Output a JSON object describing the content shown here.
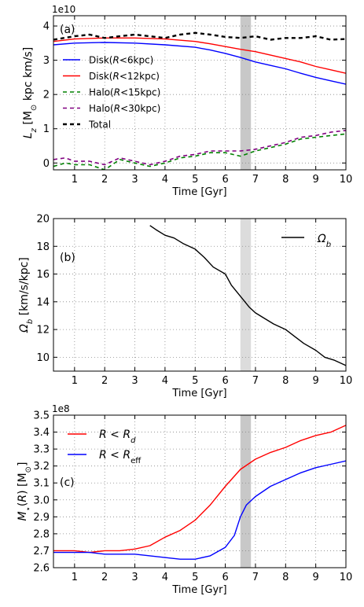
{
  "chart_data": [
    {
      "type": "line",
      "panel_label": "(a)",
      "xlabel": "Time [Gyr]",
      "ylabel": "L_z [M_⊙ kpc km/s]",
      "y_exponent": "1e10",
      "xlim": [
        0.3,
        10
      ],
      "ylim": [
        -0.2,
        4.3
      ],
      "xticks": [
        "1",
        "2",
        "3",
        "4",
        "5",
        "6",
        "7",
        "8",
        "9",
        "10"
      ],
      "yticks": [
        "0",
        "1",
        "2",
        "3",
        "4"
      ],
      "grid": true,
      "legend_position": "left",
      "shaded_band": [
        6.5,
        6.85
      ],
      "series": [
        {
          "name": "Disk(R<6kpc)",
          "color": "#0000ff",
          "style": "solid",
          "x": [
            0.3,
            1,
            2,
            3,
            4,
            5,
            5.5,
            6,
            6.5,
            7,
            7.5,
            8,
            8.5,
            9,
            9.5,
            10
          ],
          "y": [
            3.45,
            3.5,
            3.52,
            3.5,
            3.45,
            3.38,
            3.3,
            3.2,
            3.08,
            2.95,
            2.85,
            2.75,
            2.62,
            2.5,
            2.4,
            2.3
          ]
        },
        {
          "name": "Disk(R<12kpc)",
          "color": "#ff0000",
          "style": "solid",
          "x": [
            0.3,
            1,
            2,
            3,
            4,
            5,
            5.5,
            6,
            6.5,
            7,
            7.5,
            8,
            8.5,
            9,
            9.5,
            10
          ],
          "y": [
            3.55,
            3.62,
            3.65,
            3.65,
            3.62,
            3.55,
            3.48,
            3.4,
            3.32,
            3.25,
            3.15,
            3.05,
            2.95,
            2.82,
            2.72,
            2.62
          ]
        },
        {
          "name": "Halo(R<15kpc)",
          "color": "#008000",
          "style": "dashed",
          "x": [
            0.3,
            0.7,
            1,
            1.5,
            2,
            2.5,
            3,
            3.5,
            4,
            4.5,
            5,
            5.5,
            6,
            6.5,
            7,
            7.5,
            8,
            8.5,
            9,
            9.5,
            10
          ],
          "y": [
            -0.1,
            0.0,
            -0.05,
            -0.05,
            -0.2,
            0.1,
            0.0,
            -0.1,
            0.0,
            0.15,
            0.2,
            0.3,
            0.3,
            0.2,
            0.35,
            0.45,
            0.55,
            0.7,
            0.75,
            0.8,
            0.85
          ]
        },
        {
          "name": "Halo(R<30kpc)",
          "color": "#800080",
          "style": "dashed",
          "x": [
            0.3,
            0.7,
            1,
            1.5,
            2,
            2.5,
            3,
            3.5,
            4,
            4.5,
            5,
            5.5,
            6,
            6.5,
            7,
            7.5,
            8,
            8.5,
            9,
            9.5,
            10
          ],
          "y": [
            0.1,
            0.15,
            0.05,
            0.05,
            -0.05,
            0.15,
            0.05,
            -0.05,
            0.05,
            0.2,
            0.25,
            0.35,
            0.35,
            0.35,
            0.4,
            0.5,
            0.6,
            0.75,
            0.8,
            0.9,
            0.95
          ]
        },
        {
          "name": "Total",
          "color": "#000000",
          "style": "dashed",
          "x": [
            0.3,
            1,
            1.5,
            2,
            2.5,
            3,
            3.5,
            4,
            4.5,
            5,
            5.5,
            6,
            6.5,
            7,
            7.5,
            8,
            8.5,
            9,
            9.5,
            10
          ],
          "y": [
            3.6,
            3.7,
            3.75,
            3.65,
            3.7,
            3.75,
            3.7,
            3.65,
            3.75,
            3.8,
            3.75,
            3.68,
            3.65,
            3.7,
            3.6,
            3.65,
            3.65,
            3.7,
            3.6,
            3.62
          ]
        }
      ]
    },
    {
      "type": "line",
      "panel_label": "(b)",
      "xlabel": "Time [Gyr]",
      "ylabel": "Ω_b [km/s/kpc]",
      "xlim": [
        0.3,
        10
      ],
      "ylim": [
        9,
        20
      ],
      "xticks": [
        "1",
        "2",
        "3",
        "4",
        "5",
        "6",
        "7",
        "8",
        "9",
        "10"
      ],
      "yticks": [
        "10",
        "12",
        "14",
        "16",
        "18",
        "20"
      ],
      "grid": true,
      "legend_position": "top-right",
      "shaded_band": [
        6.5,
        6.85
      ],
      "series": [
        {
          "name": "Ω_b",
          "color": "#000000",
          "style": "solid",
          "x": [
            3.5,
            3.7,
            4.0,
            4.3,
            4.6,
            5.0,
            5.3,
            5.6,
            6.0,
            6.2,
            6.5,
            6.8,
            7.0,
            7.3,
            7.6,
            8.0,
            8.3,
            8.6,
            9.0,
            9.3,
            9.6,
            10.0
          ],
          "y": [
            19.5,
            19.2,
            18.8,
            18.6,
            18.2,
            17.8,
            17.2,
            16.5,
            16.0,
            15.2,
            14.4,
            13.6,
            13.2,
            12.8,
            12.4,
            12.0,
            11.5,
            11.0,
            10.5,
            10.0,
            9.8,
            9.4
          ]
        }
      ]
    },
    {
      "type": "line",
      "panel_label": "(c)",
      "xlabel": "Time [Gyr]",
      "ylabel": "M_⋆(R) [M_⊙]",
      "y_exponent": "1e8",
      "xlim": [
        0.3,
        10
      ],
      "ylim": [
        2.6,
        3.5
      ],
      "xticks": [
        "1",
        "2",
        "3",
        "4",
        "5",
        "6",
        "7",
        "8",
        "9",
        "10"
      ],
      "yticks": [
        "2.6",
        "2.7",
        "2.8",
        "2.9",
        "3.0",
        "3.1",
        "3.2",
        "3.3",
        "3.4",
        "3.5"
      ],
      "grid": true,
      "legend_position": "top-left",
      "shaded_band": [
        6.5,
        6.85
      ],
      "series": [
        {
          "name": "R<R_d",
          "color": "#ff0000",
          "style": "solid",
          "x": [
            0.3,
            1,
            1.5,
            2,
            2.5,
            3,
            3.5,
            4,
            4.5,
            5,
            5.5,
            6,
            6.5,
            7,
            7.5,
            8,
            8.5,
            9,
            9.5,
            10
          ],
          "y": [
            2.7,
            2.7,
            2.69,
            2.7,
            2.7,
            2.71,
            2.73,
            2.78,
            2.82,
            2.88,
            2.97,
            3.08,
            3.18,
            3.24,
            3.28,
            3.31,
            3.35,
            3.38,
            3.4,
            3.44
          ]
        },
        {
          "name": "R<R_eff",
          "color": "#0000ff",
          "style": "solid",
          "x": [
            0.3,
            1,
            1.5,
            2,
            2.5,
            3,
            3.5,
            4,
            4.5,
            5,
            5.5,
            6,
            6.3,
            6.5,
            6.7,
            7,
            7.5,
            8,
            8.5,
            9,
            9.5,
            10
          ],
          "y": [
            2.69,
            2.69,
            2.69,
            2.68,
            2.68,
            2.68,
            2.67,
            2.66,
            2.65,
            2.65,
            2.67,
            2.72,
            2.79,
            2.9,
            2.97,
            3.02,
            3.08,
            3.12,
            3.16,
            3.19,
            3.21,
            3.23
          ]
        }
      ]
    }
  ]
}
